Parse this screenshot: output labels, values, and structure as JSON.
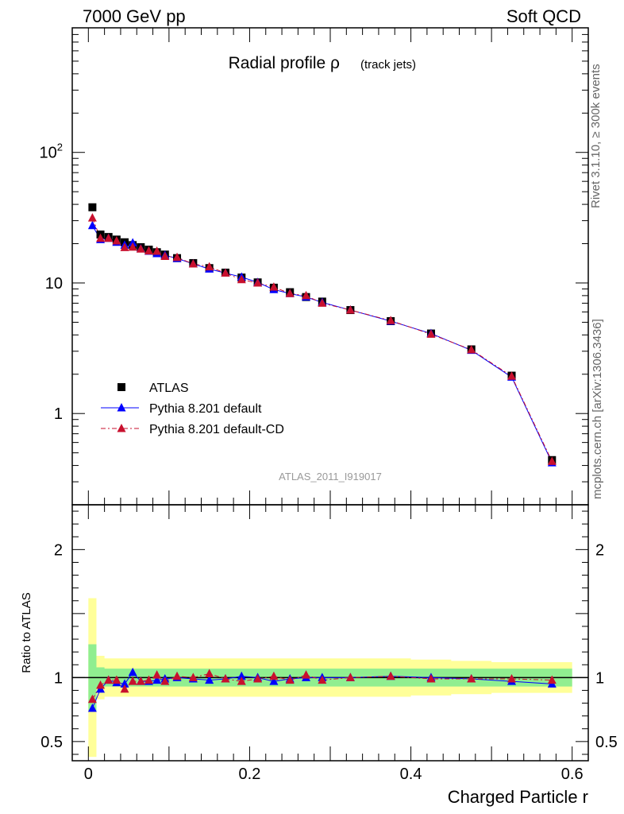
{
  "header": {
    "left": "7000 GeV pp",
    "right": "Soft QCD"
  },
  "side": {
    "rivet": "Rivet 3.1.10, ≥ 300k events",
    "mcplots": "mcplots.cern.ch [arXiv:1306.3436]"
  },
  "chart_data": [
    {
      "type": "scatter",
      "title": "Radial profile ρ",
      "title_suffix": "(track jets)",
      "watermark": "ATLAS_2011_I919017",
      "yscale": "log",
      "xlim": [
        -0.02,
        0.62
      ],
      "ylim": [
        0.2,
        900
      ],
      "xticks": [
        0,
        0.2,
        0.4,
        0.6
      ],
      "ytick_labels": [
        "1",
        "10",
        "10²"
      ],
      "legend": {
        "placement": "lower-left",
        "entries": [
          "ATLAS",
          "Pythia 8.201 default",
          "Pythia 8.201 default-CD"
        ]
      },
      "x": [
        0.005,
        0.015,
        0.025,
        0.035,
        0.045,
        0.055,
        0.065,
        0.075,
        0.085,
        0.095,
        0.11,
        0.13,
        0.15,
        0.17,
        0.19,
        0.21,
        0.23,
        0.25,
        0.27,
        0.29,
        0.325,
        0.375,
        0.425,
        0.475,
        0.525,
        0.575
      ],
      "series": [
        {
          "name": "ATLAS",
          "color": "#000000",
          "marker": "square",
          "values": [
            38.0,
            23.5,
            22.5,
            21.5,
            20.5,
            19.5,
            18.8,
            18.0,
            17.2,
            16.5,
            15.5,
            14.2,
            13.0,
            12.0,
            11.0,
            10.1,
            9.2,
            8.5,
            7.8,
            7.2,
            6.2,
            5.1,
            4.1,
            3.1,
            1.95,
            0.44
          ]
        },
        {
          "name": "Pythia 8.201 default",
          "color": "#0000ff",
          "marker": "triangle",
          "line": "solid",
          "values": [
            27.5,
            21.5,
            22.0,
            20.5,
            19.5,
            20.3,
            18.3,
            17.5,
            16.8,
            16.3,
            15.4,
            14.0,
            12.8,
            11.9,
            11.1,
            10.1,
            8.9,
            8.3,
            7.8,
            7.1,
            6.2,
            5.1,
            4.1,
            3.05,
            1.9,
            0.42
          ]
        },
        {
          "name": "Pythia 8.201 default-CD",
          "color": "#c8102e",
          "marker": "triangle",
          "line": "dashdot",
          "values": [
            31.5,
            22.0,
            22.0,
            21.0,
            18.7,
            18.8,
            18.2,
            17.6,
            17.5,
            16.0,
            15.7,
            14.0,
            13.3,
            11.9,
            10.6,
            10.0,
            9.3,
            8.3,
            8.0,
            7.0,
            6.2,
            5.15,
            4.05,
            3.08,
            1.93,
            0.43
          ]
        }
      ]
    },
    {
      "type": "scatter",
      "xlabel": "Charged Particle r",
      "ylabel": "Ratio to ATLAS",
      "xlim": [
        -0.02,
        0.62
      ],
      "ylim": [
        0.35,
        2.35
      ],
      "xticks": [
        0,
        0.2,
        0.4,
        0.6
      ],
      "yticks": [
        0.5,
        1,
        2
      ],
      "reference_line": 1,
      "x": [
        0.005,
        0.015,
        0.025,
        0.035,
        0.045,
        0.055,
        0.065,
        0.075,
        0.085,
        0.095,
        0.11,
        0.13,
        0.15,
        0.17,
        0.19,
        0.21,
        0.23,
        0.25,
        0.27,
        0.29,
        0.325,
        0.375,
        0.425,
        0.475,
        0.525,
        0.575
      ],
      "bands": {
        "inner_color": "#90ee90",
        "outer_color": "#ffff99",
        "inner": [
          0.26,
          0.08,
          0.07,
          0.07,
          0.07,
          0.07,
          0.07,
          0.07,
          0.07,
          0.07,
          0.07,
          0.07,
          0.07,
          0.07,
          0.07,
          0.07,
          0.07,
          0.07,
          0.07,
          0.07,
          0.07,
          0.07,
          0.07,
          0.07,
          0.07,
          0.07
        ],
        "outer": [
          0.62,
          0.17,
          0.15,
          0.15,
          0.15,
          0.15,
          0.15,
          0.15,
          0.15,
          0.15,
          0.15,
          0.15,
          0.15,
          0.15,
          0.15,
          0.15,
          0.15,
          0.15,
          0.15,
          0.15,
          0.15,
          0.15,
          0.14,
          0.13,
          0.12,
          0.12
        ]
      },
      "series": [
        {
          "name": "Pythia 8.201 default",
          "color": "#0000ff",
          "marker": "triangle",
          "line": "solid",
          "values": [
            0.76,
            0.91,
            0.98,
            0.96,
            0.95,
            1.04,
            0.97,
            0.97,
            0.98,
            0.99,
            1.0,
            0.99,
            0.98,
            0.99,
            1.01,
            1.0,
            0.97,
            0.99,
            1.0,
            1.0,
            1.0,
            1.01,
            1.0,
            0.99,
            0.97,
            0.95
          ]
        },
        {
          "name": "Pythia 8.201 default-CD",
          "color": "#c8102e",
          "marker": "triangle",
          "line": "dashdot",
          "values": [
            0.83,
            0.94,
            0.98,
            0.98,
            0.91,
            0.97,
            0.97,
            0.98,
            1.02,
            0.97,
            1.01,
            1.0,
            1.03,
            0.99,
            0.97,
            0.99,
            1.01,
            0.98,
            1.02,
            0.98,
            1.0,
            1.01,
            0.99,
            0.99,
            0.99,
            0.98
          ]
        }
      ]
    }
  ]
}
